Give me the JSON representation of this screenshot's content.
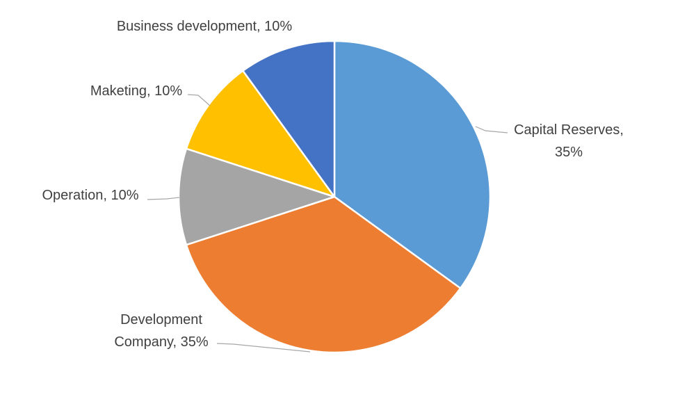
{
  "chart_data": {
    "type": "pie",
    "title": "",
    "start_angle_deg": 0,
    "direction": "clockwise",
    "legend": "none",
    "slices": [
      {
        "label_lines": [
          "Capital Reserves,",
          "35%"
        ],
        "category": "Capital Reserves",
        "value": 35,
        "color": "#5b9bd5"
      },
      {
        "label_lines": [
          "Development",
          "Company, 35%"
        ],
        "category": "Development Company",
        "value": 35,
        "color": "#ed7d31"
      },
      {
        "label_lines": [
          "Operation, 10%"
        ],
        "category": "Operation",
        "value": 10,
        "color": "#a5a5a5"
      },
      {
        "label_lines": [
          "Maketing, 10%"
        ],
        "category": "Maketing",
        "value": 10,
        "color": "#ffc000"
      },
      {
        "label_lines": [
          "Business development, 10%"
        ],
        "category": "Business development",
        "value": 10,
        "color": "#4472c4"
      }
    ]
  }
}
